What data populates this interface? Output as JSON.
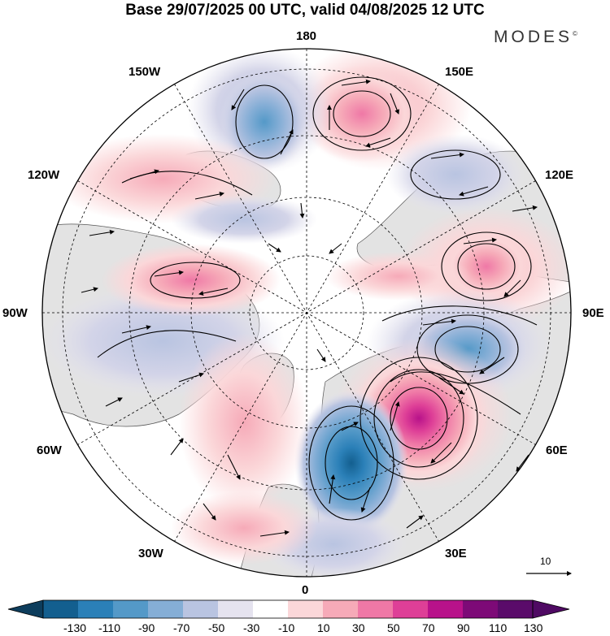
{
  "header": {
    "title": "Base 29/07/2025 00 UTC, valid 04/08/2025 12 UTC",
    "brand": "MODES",
    "brand_mark": "©"
  },
  "map": {
    "projection": "north-polar-stereographic",
    "longitude_labels": {
      "top": "180",
      "bottom": "0",
      "left": "90W",
      "right": "90E",
      "upper_left_1": "150W",
      "upper_left_2": "120W",
      "lower_left_1": "60W",
      "lower_left_2": "30W",
      "upper_right_1": "150E",
      "upper_right_2": "120E",
      "lower_right_1": "60E",
      "lower_right_2": "30E"
    },
    "reference_vector": {
      "label": "10"
    },
    "anomaly_centers": [
      {
        "sign": "positive",
        "intensity": 90,
        "lon": 50,
        "lat": 60
      },
      {
        "sign": "negative",
        "intensity": -90,
        "lon": 20,
        "lat": 58
      },
      {
        "sign": "negative",
        "intensity": -70,
        "lon": 85,
        "lat": 55
      },
      {
        "sign": "positive",
        "intensity": 50,
        "lon": 115,
        "lat": 55
      },
      {
        "sign": "positive",
        "intensity": 50,
        "lon": 165,
        "lat": 55
      },
      {
        "sign": "negative",
        "intensity": -50,
        "lon": 140,
        "lat": 60
      },
      {
        "sign": "negative",
        "intensity": -50,
        "lon": -165,
        "lat": 55
      },
      {
        "sign": "positive",
        "intensity": 50,
        "lon": -100,
        "lat": 62
      },
      {
        "sign": "negative",
        "intensity": -30,
        "lon": -80,
        "lat": 45
      }
    ]
  },
  "colorbar": {
    "ticks": [
      "-130",
      "-110",
      "-90",
      "-70",
      "-50",
      "-30",
      "-10",
      "10",
      "30",
      "50",
      "70",
      "90",
      "110",
      "130"
    ],
    "colors": [
      "#0d3d5c",
      "#135f8f",
      "#2b80b8",
      "#5499c8",
      "#85aed6",
      "#b9c4e1",
      "#e5e3ef",
      "#ffffff",
      "#fbd7d9",
      "#f6aab8",
      "#ef78a6",
      "#de3f97",
      "#b8128a",
      "#7d0a77",
      "#4f0a63"
    ]
  }
}
